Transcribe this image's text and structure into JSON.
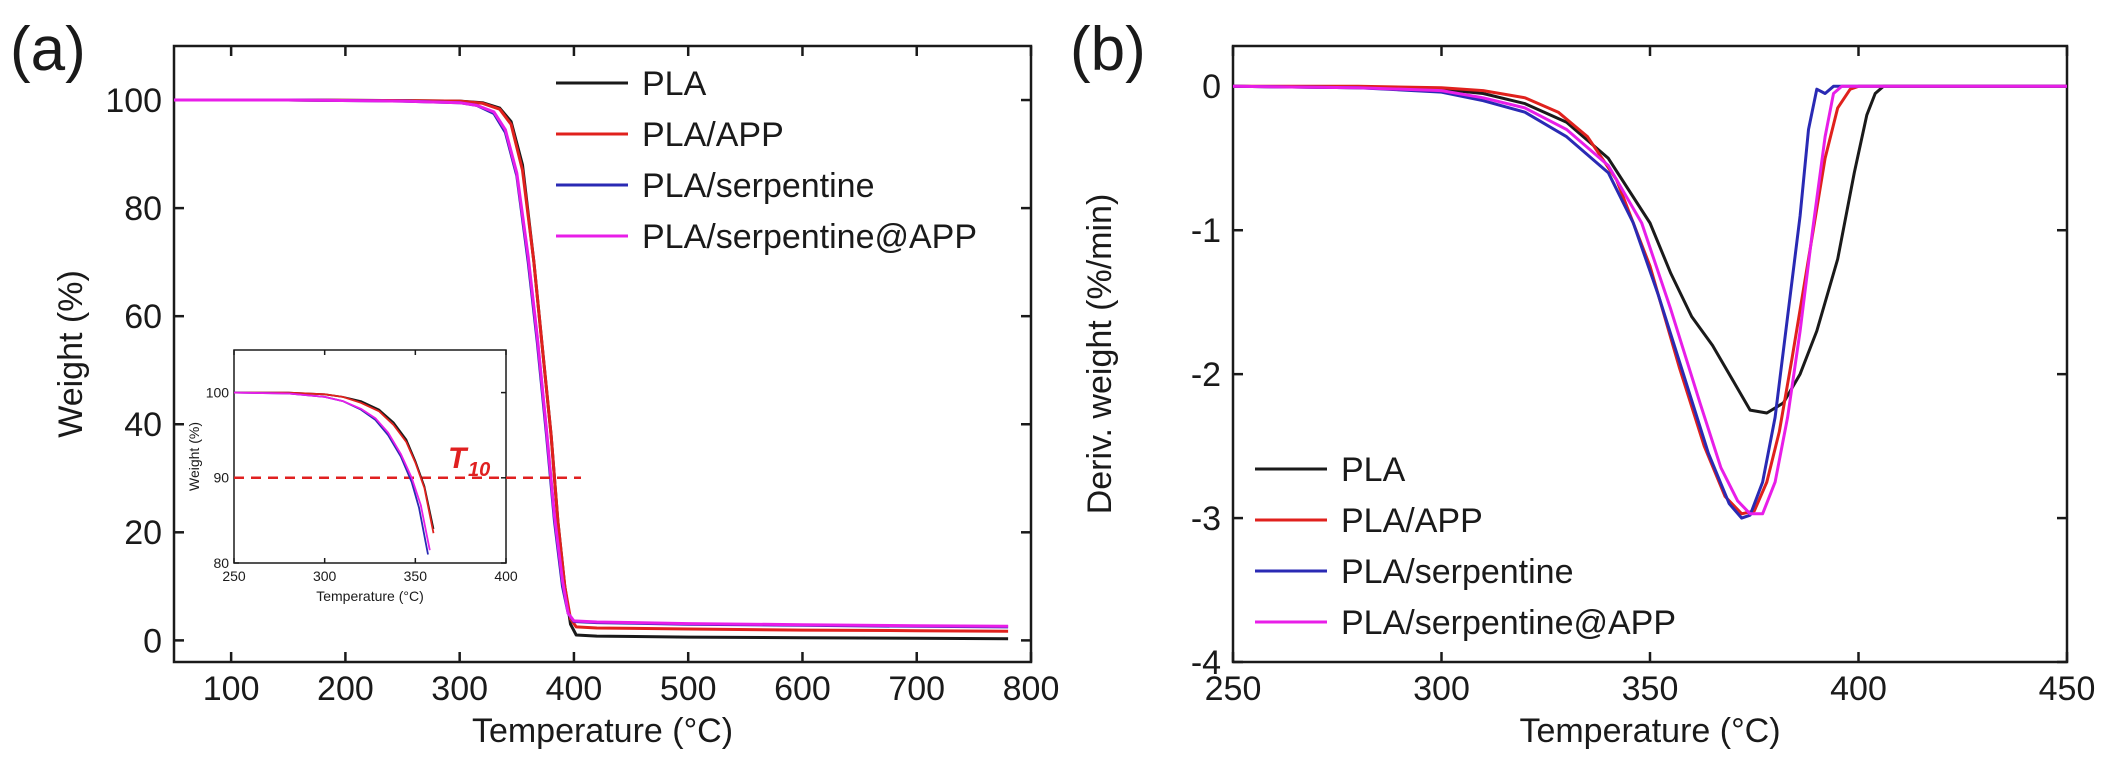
{
  "colors": {
    "PLA": "#1a1a1a",
    "PLA/APP": "#e0211d",
    "PLA/serpentine": "#2a2ab4",
    "PLA/serpentine@APP": "#e81ee8",
    "t10_line": "#e02020"
  },
  "panel_a_label": "(a)",
  "panel_b_label": "(b)",
  "inset_t10_label": "T",
  "inset_t10_subscript": "10",
  "chart_data": [
    {
      "id": "a",
      "type": "line",
      "title": "",
      "xlabel": "Temperature (°C)",
      "ylabel": "Weight (%)",
      "xlim": [
        50,
        800
      ],
      "ylim": [
        -4,
        110
      ],
      "xticks": [
        100,
        200,
        300,
        400,
        500,
        600,
        700,
        800
      ],
      "yticks": [
        0,
        20,
        40,
        60,
        80,
        100
      ],
      "legend_position": "top-right",
      "series": [
        {
          "name": "PLA",
          "x": [
            50,
            150,
            250,
            300,
            320,
            335,
            345,
            355,
            365,
            372,
            380,
            386,
            392,
            397,
            402,
            420,
            500,
            600,
            700,
            780
          ],
          "y": [
            100,
            100,
            99.9,
            99.8,
            99.5,
            98.5,
            96,
            88,
            70,
            55,
            38,
            22,
            10,
            3,
            1,
            0.8,
            0.6,
            0.5,
            0.4,
            0.3
          ]
        },
        {
          "name": "PLA/APP",
          "x": [
            50,
            150,
            250,
            300,
            320,
            335,
            345,
            355,
            365,
            372,
            380,
            386,
            392,
            397,
            402,
            420,
            500,
            600,
            700,
            780
          ],
          "y": [
            100,
            100,
            99.9,
            99.8,
            99.4,
            98.3,
            95.5,
            87,
            70,
            55,
            38,
            22,
            10,
            4,
            2.5,
            2.3,
            2.1,
            1.9,
            1.8,
            1.7
          ]
        },
        {
          "name": "PLA/serpentine",
          "x": [
            50,
            150,
            250,
            300,
            315,
            330,
            340,
            350,
            360,
            368,
            376,
            383,
            390,
            395,
            400,
            420,
            500,
            600,
            700,
            780
          ],
          "y": [
            100,
            100,
            99.8,
            99.5,
            99,
            97.5,
            94,
            86,
            70,
            55,
            38,
            22,
            10,
            5,
            3.5,
            3.3,
            3.0,
            2.8,
            2.6,
            2.5
          ]
        },
        {
          "name": "PLA/serpentine@APP",
          "x": [
            50,
            150,
            250,
            300,
            315,
            330,
            340,
            350,
            360,
            368,
            376,
            383,
            390,
            395,
            400,
            420,
            500,
            600,
            700,
            780
          ],
          "y": [
            100,
            100,
            99.8,
            99.5,
            99,
            97.8,
            94.5,
            86.5,
            71,
            56,
            39,
            23,
            11,
            5,
            3.6,
            3.4,
            3.1,
            2.9,
            2.7,
            2.6
          ]
        }
      ],
      "inset": {
        "xlabel": "Temperature (°C)",
        "ylabel": "Weight (%)",
        "xlim": [
          250,
          400
        ],
        "ylim": [
          80,
          105
        ],
        "xticks": [
          250,
          300,
          350,
          400
        ],
        "yticks": [
          80,
          90,
          100
        ],
        "reference_line_y": 90,
        "series": [
          {
            "name": "PLA",
            "x": [
              250,
              280,
              300,
              310,
              320,
              330,
              338,
              345,
              350,
              355,
              360
            ],
            "y": [
              100,
              100,
              99.8,
              99.5,
              99,
              98,
              96.5,
              94.5,
              92,
              89,
              84
            ]
          },
          {
            "name": "PLA/APP",
            "x": [
              250,
              280,
              300,
              310,
              320,
              330,
              338,
              345,
              350,
              355,
              360
            ],
            "y": [
              100,
              100,
              99.8,
              99.5,
              98.8,
              97.8,
              96.2,
              94.2,
              91.8,
              88.8,
              83.5
            ]
          },
          {
            "name": "PLA/serpentine",
            "x": [
              250,
              280,
              300,
              310,
              320,
              328,
              335,
              342,
              348,
              352,
              357
            ],
            "y": [
              100,
              99.9,
              99.5,
              99,
              98,
              96.8,
              95,
              92.5,
              89.5,
              86.5,
              81
            ]
          },
          {
            "name": "PLA/serpentine@APP",
            "x": [
              250,
              280,
              300,
              310,
              320,
              328,
              335,
              342,
              348,
              353,
              358
            ],
            "y": [
              100,
              99.9,
              99.5,
              99,
              98.1,
              97,
              95.3,
              92.8,
              90,
              86.8,
              81.5
            ]
          }
        ]
      }
    },
    {
      "id": "b",
      "type": "line",
      "title": "",
      "xlabel": "Temperature (°C)",
      "ylabel": "Deriv. weight (%/min)",
      "xlim": [
        250,
        450
      ],
      "ylim": [
        -4,
        0.28
      ],
      "xticks": [
        250,
        300,
        350,
        400,
        450
      ],
      "yticks": [
        0,
        -1,
        -2,
        -3,
        -4
      ],
      "legend_position": "bottom-left",
      "series": [
        {
          "name": "PLA",
          "x": [
            250,
            280,
            300,
            310,
            320,
            330,
            340,
            350,
            355,
            360,
            365,
            370,
            374,
            378,
            382,
            386,
            390,
            395,
            399,
            402,
            404,
            406,
            408,
            420,
            450
          ],
          "y": [
            0,
            -0.01,
            -0.02,
            -0.05,
            -0.12,
            -0.25,
            -0.5,
            -0.95,
            -1.3,
            -1.6,
            -1.8,
            -2.05,
            -2.25,
            -2.27,
            -2.2,
            -2.0,
            -1.7,
            -1.2,
            -0.6,
            -0.2,
            -0.05,
            0,
            0,
            0,
            0
          ]
        },
        {
          "name": "PLA/APP",
          "x": [
            250,
            280,
            300,
            310,
            320,
            328,
            335,
            342,
            350,
            357,
            363,
            368,
            372,
            375,
            378,
            381,
            384,
            388,
            392,
            395,
            398,
            400,
            420,
            450
          ],
          "y": [
            0,
            0,
            -0.01,
            -0.03,
            -0.08,
            -0.18,
            -0.35,
            -0.65,
            -1.25,
            -1.95,
            -2.5,
            -2.85,
            -2.97,
            -2.95,
            -2.75,
            -2.4,
            -1.9,
            -1.2,
            -0.5,
            -0.15,
            -0.02,
            0,
            0,
            0
          ]
        },
        {
          "name": "PLA/serpentine",
          "x": [
            250,
            280,
            300,
            310,
            320,
            330,
            340,
            346,
            352,
            358,
            364,
            369,
            372,
            374,
            377,
            380,
            383,
            386,
            388,
            390,
            392,
            394,
            420,
            450
          ],
          "y": [
            0,
            -0.01,
            -0.04,
            -0.1,
            -0.18,
            -0.35,
            -0.6,
            -0.95,
            -1.45,
            -2.0,
            -2.55,
            -2.9,
            -3.0,
            -2.98,
            -2.75,
            -2.3,
            -1.6,
            -0.9,
            -0.3,
            -0.02,
            -0.05,
            0,
            0,
            0
          ]
        },
        {
          "name": "PLA/serpentine@APP",
          "x": [
            250,
            280,
            300,
            310,
            320,
            330,
            340,
            348,
            355,
            362,
            367,
            371,
            374,
            377,
            380,
            383,
            386,
            389,
            392,
            394,
            396,
            420,
            450
          ],
          "y": [
            0,
            -0.01,
            -0.03,
            -0.08,
            -0.15,
            -0.3,
            -0.55,
            -0.95,
            -1.55,
            -2.2,
            -2.65,
            -2.88,
            -2.97,
            -2.97,
            -2.75,
            -2.3,
            -1.7,
            -1.0,
            -0.35,
            -0.05,
            0,
            0,
            0
          ]
        }
      ]
    }
  ]
}
